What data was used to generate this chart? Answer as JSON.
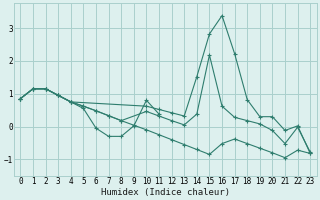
{
  "xlabel": "Humidex (Indice chaleur)",
  "bg_color": "#ddf0ee",
  "grid_color": "#aacfcc",
  "line_color": "#2e7d6e",
  "xlim": [
    -0.5,
    23.5
  ],
  "ylim": [
    -1.5,
    3.75
  ],
  "yticks": [
    -1,
    0,
    1,
    2,
    3
  ],
  "xticks": [
    0,
    1,
    2,
    3,
    4,
    5,
    6,
    7,
    8,
    9,
    10,
    11,
    12,
    13,
    14,
    15,
    16,
    17,
    18,
    19,
    20,
    21,
    22,
    23
  ],
  "series": [
    {
      "x": [
        0,
        1,
        2,
        3,
        4,
        5,
        6,
        7,
        8,
        9,
        10,
        11
      ],
      "y": [
        0.85,
        1.15,
        1.15,
        0.95,
        0.75,
        0.55,
        -0.05,
        -0.3,
        -0.3,
        0.02,
        0.8,
        0.38
      ]
    },
    {
      "x": [
        0,
        1,
        2,
        3,
        4,
        5,
        6,
        7,
        8,
        10,
        11,
        12,
        13,
        14,
        15,
        16,
        17,
        18,
        19,
        20,
        21,
        22,
        23
      ],
      "y": [
        0.85,
        1.15,
        1.15,
        0.95,
        0.75,
        0.62,
        0.48,
        0.33,
        0.18,
        0.46,
        0.32,
        0.18,
        0.05,
        0.38,
        2.18,
        0.62,
        0.28,
        0.18,
        0.08,
        -0.12,
        -0.52,
        -0.02,
        -0.78
      ]
    },
    {
      "x": [
        0,
        1,
        2,
        3,
        4,
        10,
        11,
        12,
        13,
        14,
        15,
        16,
        17,
        18,
        19,
        20,
        21,
        22,
        23
      ],
      "y": [
        0.85,
        1.15,
        1.15,
        0.95,
        0.75,
        0.62,
        0.52,
        0.42,
        0.32,
        1.52,
        2.82,
        3.38,
        2.22,
        0.82,
        0.3,
        0.3,
        -0.12,
        0.02,
        -0.82
      ]
    },
    {
      "x": [
        0,
        1,
        2,
        3,
        4,
        5,
        6,
        7,
        8,
        9,
        10,
        11,
        12,
        13,
        14,
        15,
        16,
        17,
        18,
        19,
        20,
        21,
        22,
        23
      ],
      "y": [
        0.85,
        1.15,
        1.15,
        0.95,
        0.75,
        0.62,
        0.48,
        0.33,
        0.18,
        0.04,
        -0.1,
        -0.25,
        -0.4,
        -0.55,
        -0.7,
        -0.85,
        -0.52,
        -0.38,
        -0.52,
        -0.66,
        -0.8,
        -0.95,
        -0.72,
        -0.82
      ]
    }
  ]
}
